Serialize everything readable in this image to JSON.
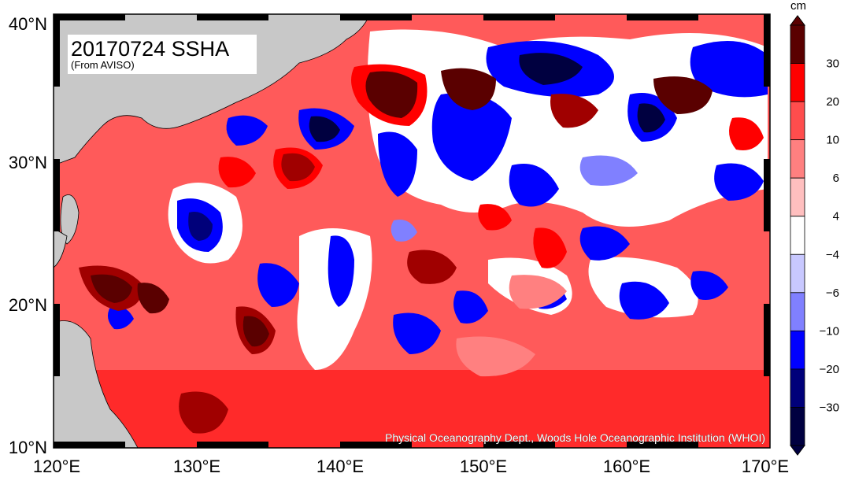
{
  "map": {
    "title": "20170724 SSHA",
    "subtitle": "(From AVISO)",
    "credit": "Physical Oceanography Dept., Woods Hole Oceanographic Institution (WHOI)",
    "lat_labels": [
      "10°N",
      "20°N",
      "30°N",
      "40°N"
    ],
    "lon_labels": [
      "120°E",
      "130°E",
      "140°E",
      "150°E",
      "160°E",
      "170°E"
    ],
    "extent": {
      "lon_min": 120,
      "lon_max": 170,
      "lat_min": 10,
      "lat_max": 40
    }
  },
  "colorbar": {
    "unit": "cm",
    "labels": [
      "30",
      "20",
      "10",
      "6",
      "4",
      "−4",
      "−6",
      "−10",
      "−20",
      "−30"
    ],
    "colors": [
      "#5a0000",
      "#ff0000",
      "#ff4d4d",
      "#ff8080",
      "#ffbfbf",
      "#ffffff",
      "#c8c8ff",
      "#8080ff",
      "#0000ff",
      "#00007a",
      "#000040"
    ]
  }
}
